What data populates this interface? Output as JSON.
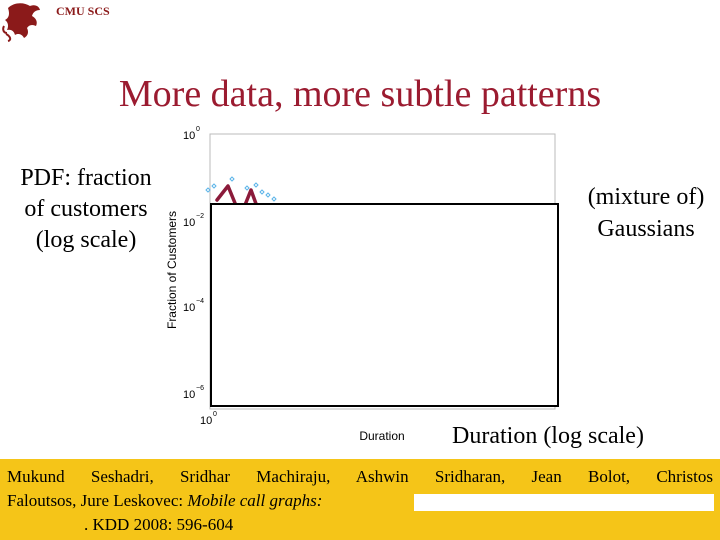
{
  "header": {
    "text": "CMU SCS"
  },
  "slide": {
    "title": "More data, more subtle patterns",
    "left_label_line1": "PDF: fraction",
    "left_label_line2": "of customers",
    "left_label_line3": "(log scale)",
    "right_label_line1": "(mixture of)",
    "right_label_line2": "Gaussians",
    "xlabel_big": "Duration (log scale)"
  },
  "chart_data": {
    "type": "scatter",
    "ylabel": "Fraction of Customers",
    "xlabel": "Duration",
    "yscale": "log",
    "y_ticks": [
      {
        "base": "10",
        "exp": "0"
      },
      {
        "base": "10",
        "exp": "−2"
      },
      {
        "base": "10",
        "exp": "−4"
      },
      {
        "base": "10",
        "exp": "−6"
      }
    ],
    "x_ticks": [
      {
        "base": "10",
        "exp": "0"
      }
    ],
    "colors": {
      "marker": "#5ab4e8",
      "annotation": "#8b1a3a",
      "box": "#000000"
    }
  },
  "citation": {
    "line1": "Mukund Seshadri, Sridhar Machiraju, Ashwin Sridharan, Jean Bolot, Christos",
    "line2_plain": "Faloutsos, Jure Leskovec: ",
    "line2_italic": "Mobile call graphs:",
    "line3": ". KDD 2008: 596-604"
  }
}
